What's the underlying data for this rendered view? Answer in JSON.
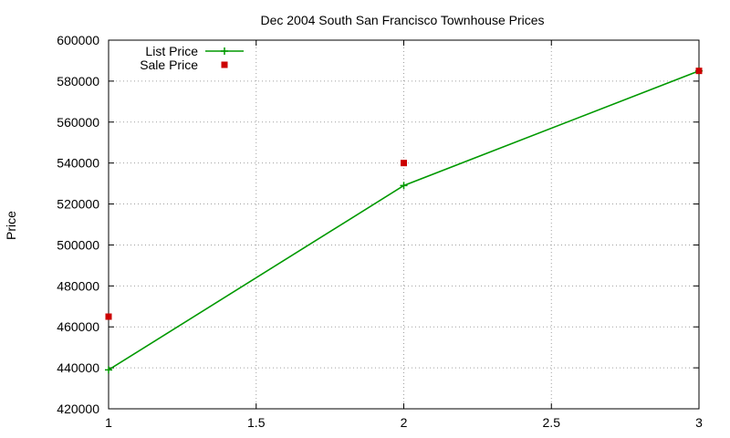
{
  "chart_data": {
    "type": "line",
    "title": "Dec 2004 South San Francisco Townhouse Prices",
    "xlabel": "",
    "ylabel": "Price",
    "xlim": [
      1,
      3
    ],
    "ylim": [
      420000,
      600000
    ],
    "x_ticks": [
      "1",
      "1.5",
      "2",
      "2.5",
      "3"
    ],
    "y_ticks": [
      "420000",
      "440000",
      "460000",
      "480000",
      "500000",
      "520000",
      "540000",
      "560000",
      "580000",
      "600000"
    ],
    "grid": true,
    "legend_position": "top-left",
    "series": [
      {
        "name": "List Price",
        "style": "line-with-plus-markers",
        "color": "#009900",
        "x": [
          1,
          2,
          3
        ],
        "y": [
          439000,
          529000,
          585000
        ]
      },
      {
        "name": "Sale Price",
        "style": "square-markers",
        "color": "#cc0000",
        "x": [
          1,
          2,
          3
        ],
        "y": [
          465000,
          540000,
          585000
        ]
      }
    ]
  }
}
